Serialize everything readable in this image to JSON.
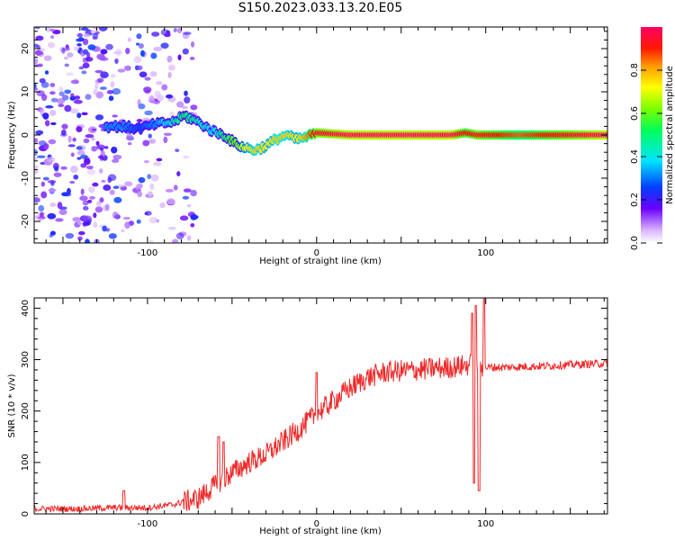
{
  "figure": {
    "title": "S150.2023.033.13.20.E05"
  },
  "chart_data": [
    {
      "type": "heatmap",
      "xlabel": "Height of straight line (km)",
      "ylabel": "Frequency (Hz)",
      "xlim": [
        -167,
        172
      ],
      "ylim": [
        -25,
        25
      ],
      "xticks": [
        -100,
        0,
        100
      ],
      "yticks": [
        -20,
        -10,
        0,
        10,
        20
      ],
      "colorbar": {
        "label": "Normalized spectral amplitude",
        "range": [
          0.0,
          1.0
        ],
        "ticks": [
          0.0,
          0.2,
          0.4,
          0.6,
          0.8
        ],
        "tick_labels": [
          "0.0",
          "0.2",
          "0.4",
          "0.6",
          "0.8"
        ],
        "colormap": [
          "#ffffff",
          "#cc99ff",
          "#6600ff",
          "#0044ff",
          "#00e5ff",
          "#00ff66",
          "#66ff00",
          "#ffff00",
          "#ff9900",
          "#ff0000",
          "#ff0066"
        ]
      },
      "ridge": {
        "x": [
          -125,
          -115,
          -105,
          -95,
          -85,
          -78,
          -70,
          -62,
          -55,
          -48,
          -42,
          -36,
          -30,
          -24,
          -18,
          -12,
          -6,
          0,
          20,
          50,
          80,
          88,
          95,
          120,
          150,
          170
        ],
        "y": [
          2,
          2,
          1.5,
          2.5,
          3,
          4.5,
          3,
          1,
          0,
          -2,
          -3,
          -3.5,
          -2.5,
          -1,
          0,
          -1,
          -0.5,
          0.5,
          0,
          0,
          0,
          0.5,
          0,
          0,
          0,
          0
        ],
        "amplitude": [
          0.35,
          0.35,
          0.3,
          0.35,
          0.45,
          0.5,
          0.45,
          0.4,
          0.5,
          0.6,
          0.7,
          0.75,
          0.7,
          0.75,
          0.75,
          0.7,
          0.8,
          0.95,
          1.0,
          1.0,
          1.0,
          0.9,
          0.95,
          0.85,
          0.95,
          1.0
        ]
      },
      "noise": {
        "x_range": [
          -167,
          -70
        ],
        "y_range": [
          -25,
          25
        ],
        "amplitude_range": [
          0.05,
          0.3
        ]
      }
    },
    {
      "type": "line",
      "xlabel": "Height of straight line (km)",
      "ylabel": "SNR (10 * v/v)",
      "xlim": [
        -167,
        172
      ],
      "ylim": [
        0,
        420
      ],
      "xticks": [
        -100,
        0,
        100
      ],
      "yticks": [
        0,
        100,
        200,
        300,
        400
      ],
      "color": "#ef2a2a",
      "trend": {
        "x": [
          -167,
          -140,
          -120,
          -100,
          -85,
          -70,
          -60,
          -50,
          -40,
          -30,
          -20,
          -10,
          0,
          10,
          20,
          30,
          40,
          50,
          60,
          70,
          80,
          90,
          95,
          100,
          110,
          130,
          150,
          172
        ],
        "y": [
          10,
          10,
          12,
          12,
          18,
          30,
          55,
          80,
          100,
          115,
          140,
          165,
          195,
          220,
          245,
          265,
          275,
          278,
          280,
          283,
          285,
          290,
          290,
          285,
          285,
          287,
          290,
          293
        ]
      },
      "spikes": [
        {
          "x": -114,
          "y": 45
        },
        {
          "x": -58,
          "y": 150
        },
        {
          "x": -55,
          "y": 140
        },
        {
          "x": 0,
          "y": 275
        },
        {
          "x": 92,
          "y": 390
        },
        {
          "x": 93,
          "y": 60
        },
        {
          "x": 94,
          "y": 405
        },
        {
          "x": 96,
          "y": 45
        },
        {
          "x": 99,
          "y": 420
        }
      ]
    }
  ]
}
